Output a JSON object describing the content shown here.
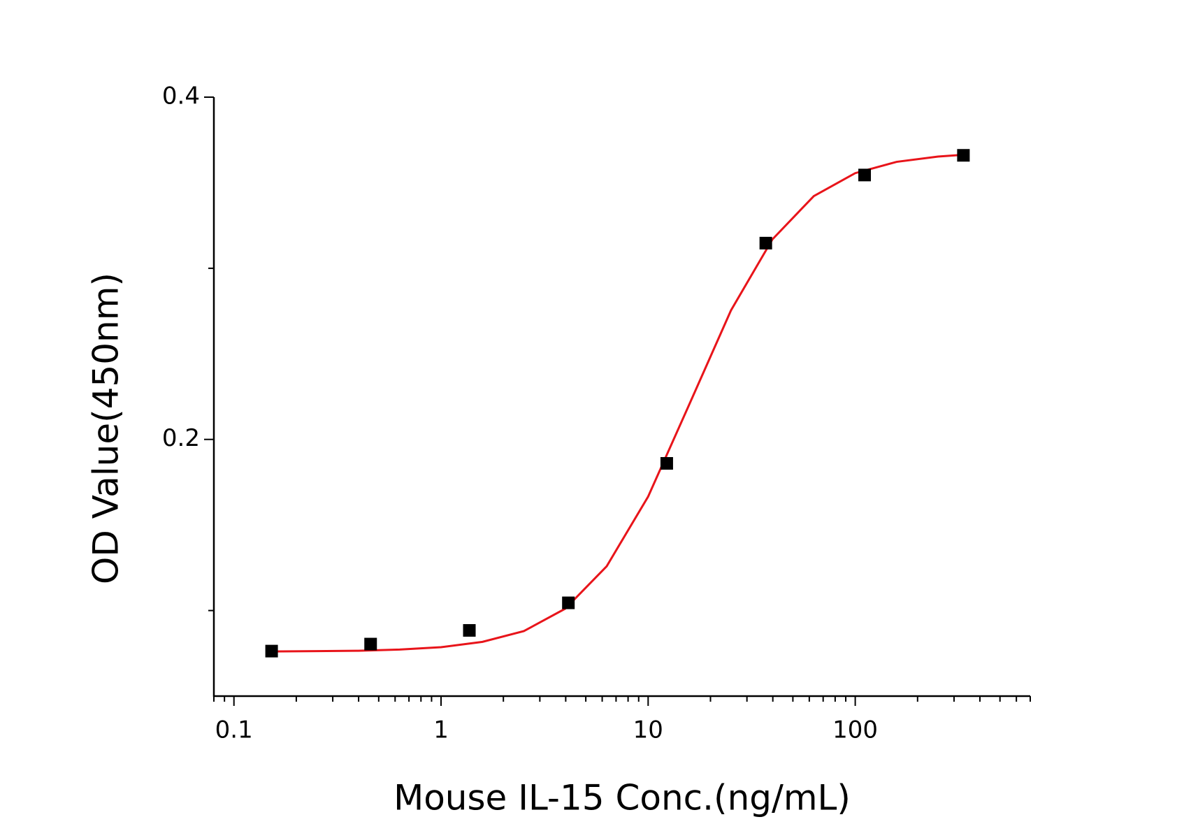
{
  "chart_data": {
    "type": "scatter",
    "x_label": "Mouse IL-15 Conc.(ng/mL)",
    "y_label": "OD Value(450nm)",
    "x": [
      0.152,
      0.457,
      1.37,
      4.12,
      12.3,
      37,
      111,
      333
    ],
    "values": [
      0.0763,
      0.0804,
      0.0884,
      0.1045,
      0.186,
      0.3147,
      0.3545,
      0.366
    ],
    "marker_color": "#000000",
    "fit_curve": {
      "color": "#e8141a",
      "x": [
        0.151,
        0.251,
        0.398,
        0.631,
        1,
        1.585,
        2.512,
        3.981,
        6.31,
        10,
        15.85,
        25.12,
        39.81,
        63.1,
        100,
        158.5,
        251.2,
        331
      ],
      "values": [
        0.0761,
        0.0763,
        0.0765,
        0.0772,
        0.0786,
        0.0817,
        0.088,
        0.1011,
        0.1259,
        0.1666,
        0.2208,
        0.2754,
        0.3169,
        0.3422,
        0.3556,
        0.3622,
        0.3653,
        0.3663
      ]
    },
    "xscale": "log",
    "xlim": [
      0.08,
      700
    ],
    "xticks": [
      0.1,
      1,
      10,
      100
    ],
    "ylim": [
      0.05,
      0.4
    ],
    "yticks": [
      0.2,
      0.4
    ],
    "yticks_minor": [
      0.1,
      0.3
    ]
  }
}
